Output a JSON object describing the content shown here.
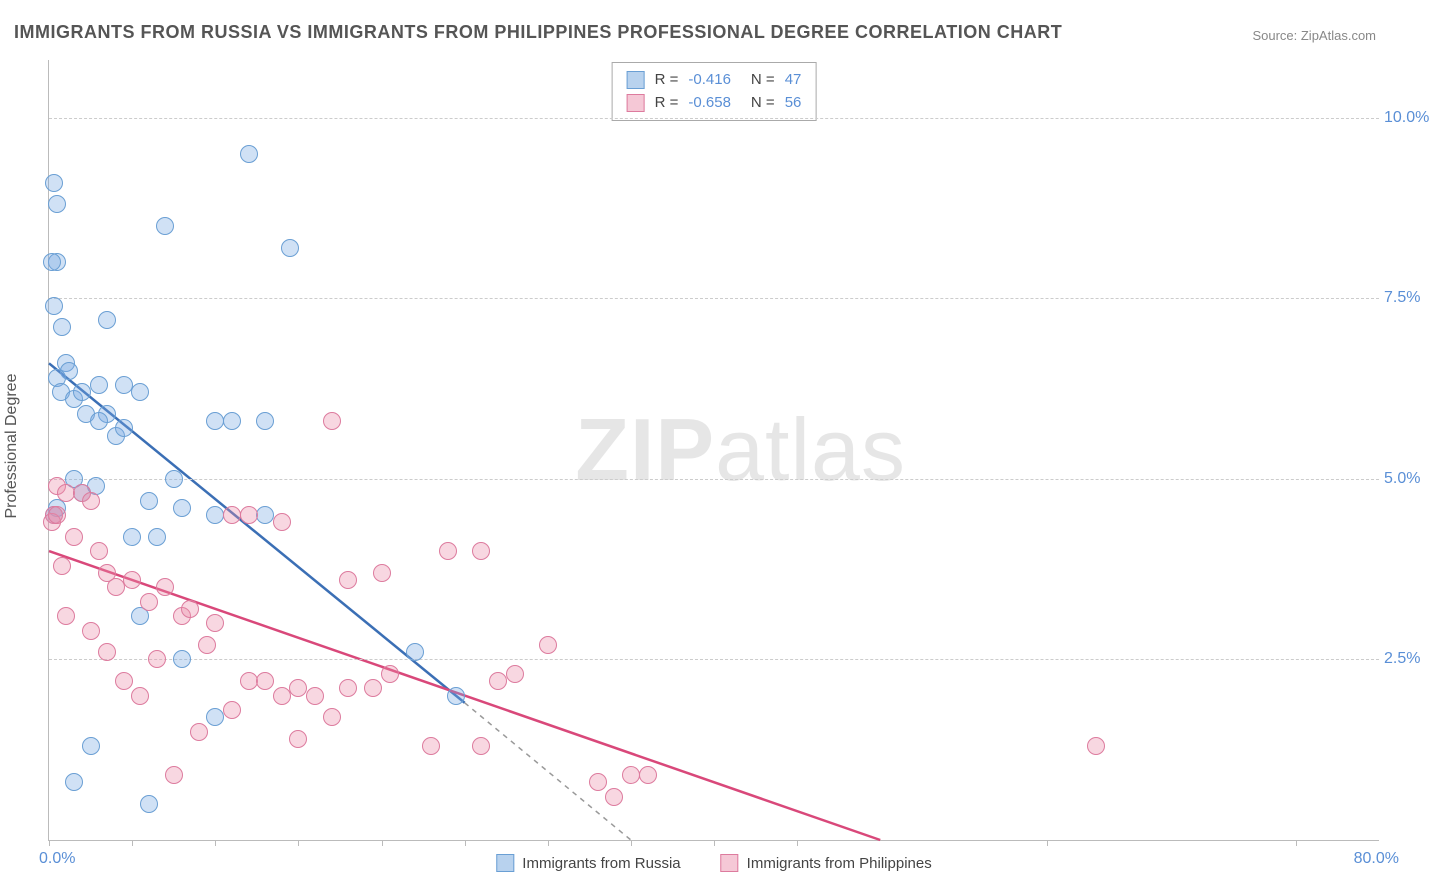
{
  "title": "IMMIGRANTS FROM RUSSIA VS IMMIGRANTS FROM PHILIPPINES PROFESSIONAL DEGREE CORRELATION CHART",
  "source": "Source: ZipAtlas.com",
  "watermark_bold": "ZIP",
  "watermark_rest": "atlas",
  "y_axis_label": "Professional Degree",
  "chart": {
    "type": "scatter",
    "xlim": [
      0,
      80
    ],
    "ylim": [
      0,
      10.8
    ],
    "x_ticks": [
      0,
      5,
      10,
      15,
      20,
      25,
      30,
      35,
      40,
      45,
      60,
      75
    ],
    "x_min_label": "0.0%",
    "x_max_label": "80.0%",
    "y_grid": [
      {
        "v": 2.5,
        "label": "2.5%"
      },
      {
        "v": 5.0,
        "label": "5.0%"
      },
      {
        "v": 7.5,
        "label": "7.5%"
      },
      {
        "v": 10.0,
        "label": "10.0%"
      }
    ],
    "grid_color": "#cccccc",
    "background_color": "#ffffff",
    "series": [
      {
        "name": "Immigrants from Russia",
        "fill": "rgba(120,170,225,0.35)",
        "stroke": "#6a9fd4",
        "line_color": "#3b6fb5",
        "swatch_fill": "#b8d2ee",
        "swatch_border": "#6a9fd4",
        "R": "-0.416",
        "N": "47",
        "regression": {
          "x1": 0,
          "y1": 6.6,
          "x2": 25,
          "y2": 1.9,
          "x2_ext": 35,
          "y2_ext": 0
        },
        "points": [
          [
            0.3,
            9.1
          ],
          [
            0.5,
            8.8
          ],
          [
            0.5,
            8.0
          ],
          [
            0.2,
            8.0
          ],
          [
            0.3,
            7.4
          ],
          [
            1.0,
            6.6
          ],
          [
            1.2,
            6.5
          ],
          [
            0.5,
            6.4
          ],
          [
            0.7,
            6.2
          ],
          [
            1.5,
            6.1
          ],
          [
            2.0,
            6.2
          ],
          [
            3.0,
            6.3
          ],
          [
            4.5,
            6.3
          ],
          [
            5.5,
            6.2
          ],
          [
            3.5,
            5.9
          ],
          [
            2.2,
            5.9
          ],
          [
            3.0,
            5.8
          ],
          [
            4.0,
            5.6
          ],
          [
            4.5,
            5.7
          ],
          [
            1.5,
            5.0
          ],
          [
            2.0,
            4.8
          ],
          [
            2.8,
            4.9
          ],
          [
            6.0,
            4.7
          ],
          [
            7.5,
            5.0
          ],
          [
            8.0,
            4.6
          ],
          [
            10.0,
            5.8
          ],
          [
            11.0,
            5.8
          ],
          [
            13.0,
            5.8
          ],
          [
            13.0,
            4.5
          ],
          [
            10.0,
            4.5
          ],
          [
            5.0,
            4.2
          ],
          [
            6.5,
            4.2
          ],
          [
            0.5,
            4.6
          ],
          [
            0.3,
            4.5
          ],
          [
            5.5,
            3.1
          ],
          [
            8.0,
            2.5
          ],
          [
            10.0,
            1.7
          ],
          [
            2.5,
            1.3
          ],
          [
            6.0,
            0.5
          ],
          [
            1.5,
            0.8
          ],
          [
            12.0,
            9.5
          ],
          [
            14.5,
            8.2
          ],
          [
            7.0,
            8.5
          ],
          [
            0.8,
            7.1
          ],
          [
            3.5,
            7.2
          ],
          [
            22.0,
            2.6
          ],
          [
            24.5,
            2.0
          ]
        ]
      },
      {
        "name": "Immigrants from Philippines",
        "fill": "rgba(235,140,170,0.35)",
        "stroke": "#dd7b9e",
        "line_color": "#d9487a",
        "swatch_fill": "#f5c8d6",
        "swatch_border": "#dd7b9e",
        "R": "-0.658",
        "N": "56",
        "regression": {
          "x1": 0,
          "y1": 4.0,
          "x2": 50,
          "y2": 0
        },
        "points": [
          [
            0.5,
            4.9
          ],
          [
            1.0,
            4.8
          ],
          [
            2.0,
            4.8
          ],
          [
            2.5,
            4.7
          ],
          [
            0.3,
            4.5
          ],
          [
            0.2,
            4.4
          ],
          [
            1.5,
            4.2
          ],
          [
            3.0,
            4.0
          ],
          [
            3.5,
            3.7
          ],
          [
            4.0,
            3.5
          ],
          [
            5.0,
            3.6
          ],
          [
            6.0,
            3.3
          ],
          [
            7.0,
            3.5
          ],
          [
            8.0,
            3.1
          ],
          [
            8.5,
            3.2
          ],
          [
            10.0,
            3.0
          ],
          [
            11.0,
            4.5
          ],
          [
            12.0,
            4.5
          ],
          [
            14.0,
            4.4
          ],
          [
            17.0,
            5.8
          ],
          [
            12.0,
            2.2
          ],
          [
            13.0,
            2.2
          ],
          [
            14.0,
            2.0
          ],
          [
            15.0,
            2.1
          ],
          [
            16.0,
            2.0
          ],
          [
            18.0,
            2.1
          ],
          [
            19.5,
            2.1
          ],
          [
            20.5,
            2.3
          ],
          [
            17.0,
            1.7
          ],
          [
            15.0,
            1.4
          ],
          [
            11.0,
            1.8
          ],
          [
            9.0,
            1.5
          ],
          [
            7.5,
            0.9
          ],
          [
            4.5,
            2.2
          ],
          [
            5.5,
            2.0
          ],
          [
            6.5,
            2.5
          ],
          [
            9.5,
            2.7
          ],
          [
            20.0,
            3.7
          ],
          [
            24.0,
            4.0
          ],
          [
            26.0,
            4.0
          ],
          [
            27.0,
            2.2
          ],
          [
            28.0,
            2.3
          ],
          [
            26.0,
            1.3
          ],
          [
            23.0,
            1.3
          ],
          [
            30.0,
            2.7
          ],
          [
            33.0,
            0.8
          ],
          [
            34.0,
            0.6
          ],
          [
            35.0,
            0.9
          ],
          [
            36.0,
            0.9
          ],
          [
            1.0,
            3.1
          ],
          [
            2.5,
            2.9
          ],
          [
            3.5,
            2.6
          ],
          [
            0.8,
            3.8
          ],
          [
            0.5,
            4.5
          ],
          [
            63.0,
            1.3
          ],
          [
            18.0,
            3.6
          ]
        ]
      }
    ]
  },
  "legend_bottom": {
    "a": "Immigrants from Russia",
    "b": "Immigrants from Philippines"
  }
}
